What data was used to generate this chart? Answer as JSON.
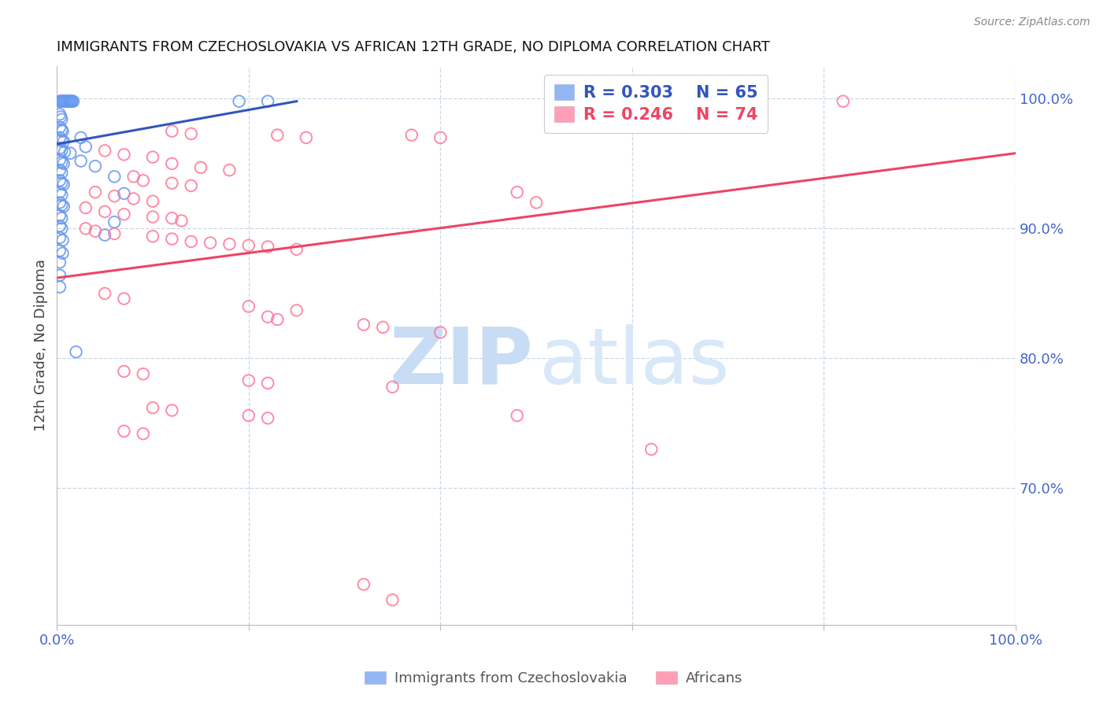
{
  "title": "IMMIGRANTS FROM CZECHOSLOVAKIA VS AFRICAN 12TH GRADE, NO DIPLOMA CORRELATION CHART",
  "source": "Source: ZipAtlas.com",
  "ylabel": "12th Grade, No Diploma",
  "legend_blue_r": "R = 0.303",
  "legend_blue_n": "N = 65",
  "legend_pink_r": "R = 0.246",
  "legend_pink_n": "N = 74",
  "blue_color": "#6699ee",
  "pink_color": "#ff7799",
  "xlim": [
    0.0,
    1.0
  ],
  "ylim": [
    0.595,
    1.025
  ],
  "yticks": [
    1.0,
    0.9,
    0.8,
    0.7
  ],
  "ytick_labels": [
    "100.0%",
    "90.0%",
    "80.0%",
    "70.0%"
  ],
  "xtick_labels_show": [
    "0.0%",
    "100.0%"
  ],
  "blue_trendline": [
    [
      0.0,
      0.965
    ],
    [
      0.25,
      0.998
    ]
  ],
  "pink_trendline": [
    [
      0.0,
      0.862
    ],
    [
      1.0,
      0.958
    ]
  ],
  "blue_scatter": [
    [
      0.003,
      0.998
    ],
    [
      0.004,
      0.998
    ],
    [
      0.005,
      0.998
    ],
    [
      0.006,
      0.998
    ],
    [
      0.007,
      0.998
    ],
    [
      0.008,
      0.998
    ],
    [
      0.009,
      0.998
    ],
    [
      0.01,
      0.998
    ],
    [
      0.011,
      0.998
    ],
    [
      0.012,
      0.998
    ],
    [
      0.013,
      0.998
    ],
    [
      0.014,
      0.998
    ],
    [
      0.015,
      0.998
    ],
    [
      0.016,
      0.998
    ],
    [
      0.017,
      0.998
    ],
    [
      0.19,
      0.998
    ],
    [
      0.22,
      0.998
    ],
    [
      0.003,
      0.988
    ],
    [
      0.004,
      0.986
    ],
    [
      0.005,
      0.984
    ],
    [
      0.003,
      0.978
    ],
    [
      0.005,
      0.976
    ],
    [
      0.006,
      0.975
    ],
    [
      0.003,
      0.97
    ],
    [
      0.005,
      0.968
    ],
    [
      0.007,
      0.967
    ],
    [
      0.003,
      0.962
    ],
    [
      0.005,
      0.96
    ],
    [
      0.008,
      0.959
    ],
    [
      0.014,
      0.958
    ],
    [
      0.003,
      0.953
    ],
    [
      0.005,
      0.951
    ],
    [
      0.007,
      0.95
    ],
    [
      0.003,
      0.945
    ],
    [
      0.005,
      0.943
    ],
    [
      0.003,
      0.937
    ],
    [
      0.005,
      0.935
    ],
    [
      0.007,
      0.934
    ],
    [
      0.003,
      0.928
    ],
    [
      0.005,
      0.926
    ],
    [
      0.003,
      0.92
    ],
    [
      0.005,
      0.918
    ],
    [
      0.007,
      0.917
    ],
    [
      0.003,
      0.91
    ],
    [
      0.005,
      0.908
    ],
    [
      0.003,
      0.902
    ],
    [
      0.005,
      0.9
    ],
    [
      0.003,
      0.893
    ],
    [
      0.006,
      0.891
    ],
    [
      0.003,
      0.883
    ],
    [
      0.006,
      0.881
    ],
    [
      0.003,
      0.874
    ],
    [
      0.003,
      0.864
    ],
    [
      0.003,
      0.855
    ],
    [
      0.025,
      0.97
    ],
    [
      0.03,
      0.963
    ],
    [
      0.025,
      0.952
    ],
    [
      0.04,
      0.948
    ],
    [
      0.06,
      0.94
    ],
    [
      0.07,
      0.927
    ],
    [
      0.06,
      0.905
    ],
    [
      0.05,
      0.895
    ],
    [
      0.02,
      0.805
    ]
  ],
  "pink_scatter": [
    [
      0.7,
      0.998
    ],
    [
      0.73,
      0.998
    ],
    [
      0.82,
      0.998
    ],
    [
      0.12,
      0.975
    ],
    [
      0.14,
      0.973
    ],
    [
      0.23,
      0.972
    ],
    [
      0.26,
      0.97
    ],
    [
      0.37,
      0.972
    ],
    [
      0.4,
      0.97
    ],
    [
      0.05,
      0.96
    ],
    [
      0.07,
      0.957
    ],
    [
      0.1,
      0.955
    ],
    [
      0.12,
      0.95
    ],
    [
      0.15,
      0.947
    ],
    [
      0.18,
      0.945
    ],
    [
      0.08,
      0.94
    ],
    [
      0.09,
      0.937
    ],
    [
      0.12,
      0.935
    ],
    [
      0.14,
      0.933
    ],
    [
      0.04,
      0.928
    ],
    [
      0.06,
      0.925
    ],
    [
      0.08,
      0.923
    ],
    [
      0.1,
      0.921
    ],
    [
      0.03,
      0.916
    ],
    [
      0.05,
      0.913
    ],
    [
      0.07,
      0.911
    ],
    [
      0.1,
      0.909
    ],
    [
      0.12,
      0.908
    ],
    [
      0.13,
      0.906
    ],
    [
      0.03,
      0.9
    ],
    [
      0.04,
      0.898
    ],
    [
      0.06,
      0.896
    ],
    [
      0.1,
      0.894
    ],
    [
      0.12,
      0.892
    ],
    [
      0.14,
      0.89
    ],
    [
      0.16,
      0.889
    ],
    [
      0.18,
      0.888
    ],
    [
      0.2,
      0.887
    ],
    [
      0.22,
      0.886
    ],
    [
      0.25,
      0.884
    ],
    [
      0.48,
      0.928
    ],
    [
      0.5,
      0.92
    ],
    [
      0.05,
      0.85
    ],
    [
      0.07,
      0.846
    ],
    [
      0.2,
      0.84
    ],
    [
      0.25,
      0.837
    ],
    [
      0.22,
      0.832
    ],
    [
      0.23,
      0.83
    ],
    [
      0.32,
      0.826
    ],
    [
      0.34,
      0.824
    ],
    [
      0.4,
      0.82
    ],
    [
      0.07,
      0.79
    ],
    [
      0.09,
      0.788
    ],
    [
      0.2,
      0.783
    ],
    [
      0.22,
      0.781
    ],
    [
      0.35,
      0.778
    ],
    [
      0.1,
      0.762
    ],
    [
      0.12,
      0.76
    ],
    [
      0.2,
      0.756
    ],
    [
      0.22,
      0.754
    ],
    [
      0.48,
      0.756
    ],
    [
      0.07,
      0.744
    ],
    [
      0.09,
      0.742
    ],
    [
      0.62,
      0.73
    ],
    [
      0.32,
      0.626
    ],
    [
      0.35,
      0.614
    ]
  ]
}
